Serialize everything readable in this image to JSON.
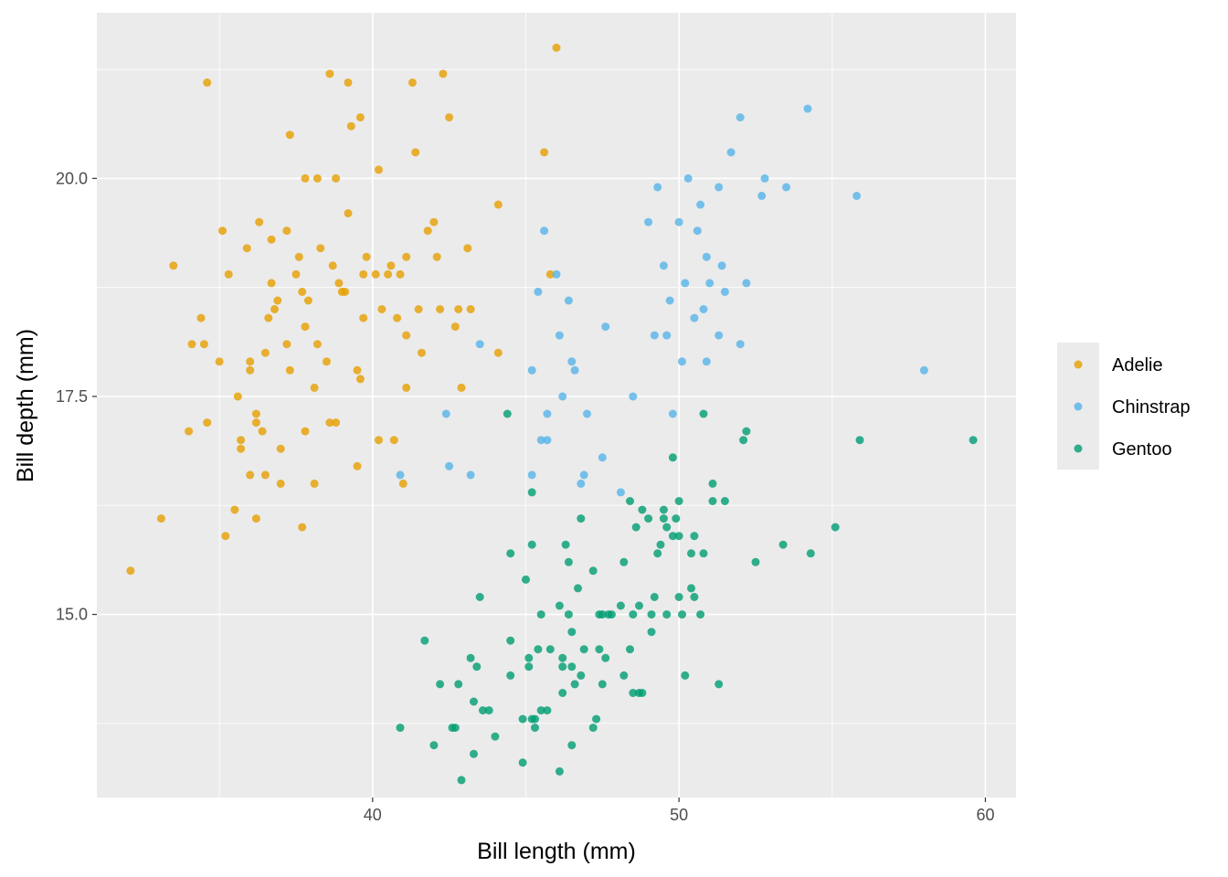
{
  "chart_data": {
    "type": "scatter",
    "title": "",
    "xlabel": "Bill length (mm)",
    "ylabel": "Bill depth (mm)",
    "xlim": [
      31.0,
      61.0
    ],
    "ylim": [
      12.9,
      21.9
    ],
    "x_ticks": [
      40,
      50,
      60
    ],
    "x_tick_labels": [
      "40",
      "50",
      "60"
    ],
    "y_ticks": [
      15.0,
      17.5,
      20.0
    ],
    "y_tick_labels": [
      "15.0",
      "17.5",
      "20.0"
    ],
    "grid": true,
    "panel_background": "#ebebeb",
    "legend_position": "right",
    "point_opacity": 0.8,
    "series": [
      {
        "name": "Adelie",
        "color": "#E69F00",
        "points": [
          [
            32.1,
            15.5
          ],
          [
            33.1,
            16.1
          ],
          [
            33.5,
            19.0
          ],
          [
            34.0,
            17.1
          ],
          [
            34.1,
            18.1
          ],
          [
            34.4,
            18.4
          ],
          [
            34.5,
            18.1
          ],
          [
            34.6,
            21.1
          ],
          [
            34.6,
            17.2
          ],
          [
            35.0,
            17.9
          ],
          [
            35.1,
            19.4
          ],
          [
            35.2,
            15.9
          ],
          [
            35.3,
            18.9
          ],
          [
            35.5,
            16.2
          ],
          [
            35.6,
            17.5
          ],
          [
            35.7,
            17.0
          ],
          [
            35.7,
            16.9
          ],
          [
            35.9,
            19.2
          ],
          [
            36.0,
            17.8
          ],
          [
            36.0,
            17.9
          ],
          [
            36.0,
            16.6
          ],
          [
            36.2,
            17.2
          ],
          [
            36.2,
            17.3
          ],
          [
            36.2,
            16.1
          ],
          [
            36.3,
            19.5
          ],
          [
            36.4,
            17.1
          ],
          [
            36.5,
            18.0
          ],
          [
            36.5,
            16.6
          ],
          [
            36.6,
            18.4
          ],
          [
            36.7,
            18.8
          ],
          [
            36.7,
            19.3
          ],
          [
            36.8,
            18.5
          ],
          [
            36.9,
            18.6
          ],
          [
            37.0,
            16.9
          ],
          [
            37.0,
            16.5
          ],
          [
            37.2,
            18.1
          ],
          [
            37.2,
            19.4
          ],
          [
            37.3,
            17.8
          ],
          [
            37.3,
            20.5
          ],
          [
            37.5,
            18.9
          ],
          [
            37.6,
            19.1
          ],
          [
            37.7,
            18.7
          ],
          [
            37.7,
            16.0
          ],
          [
            37.8,
            17.1
          ],
          [
            37.8,
            18.3
          ],
          [
            37.8,
            20.0
          ],
          [
            37.9,
            18.6
          ],
          [
            38.1,
            17.6
          ],
          [
            38.1,
            16.5
          ],
          [
            38.2,
            20.0
          ],
          [
            38.2,
            18.1
          ],
          [
            38.3,
            19.2
          ],
          [
            38.5,
            17.9
          ],
          [
            38.6,
            21.2
          ],
          [
            38.6,
            17.2
          ],
          [
            38.7,
            19.0
          ],
          [
            38.8,
            17.2
          ],
          [
            38.8,
            20.0
          ],
          [
            38.9,
            18.8
          ],
          [
            39.0,
            18.7
          ],
          [
            39.1,
            18.7
          ],
          [
            39.2,
            19.6
          ],
          [
            39.2,
            21.1
          ],
          [
            39.3,
            20.6
          ],
          [
            39.5,
            17.8
          ],
          [
            39.5,
            16.7
          ],
          [
            39.6,
            17.7
          ],
          [
            39.6,
            20.7
          ],
          [
            39.7,
            18.4
          ],
          [
            39.7,
            18.9
          ],
          [
            39.8,
            19.1
          ],
          [
            40.1,
            18.9
          ],
          [
            40.2,
            17.0
          ],
          [
            40.2,
            20.1
          ],
          [
            40.3,
            18.5
          ],
          [
            40.5,
            18.9
          ],
          [
            40.6,
            19.0
          ],
          [
            40.7,
            17.0
          ],
          [
            40.8,
            18.4
          ],
          [
            40.9,
            18.9
          ],
          [
            41.0,
            16.5
          ],
          [
            41.1,
            19.1
          ],
          [
            41.1,
            18.2
          ],
          [
            41.1,
            17.6
          ],
          [
            41.3,
            21.1
          ],
          [
            41.4,
            20.3
          ],
          [
            41.5,
            18.5
          ],
          [
            41.6,
            18.0
          ],
          [
            41.8,
            19.4
          ],
          [
            42.0,
            19.5
          ],
          [
            42.1,
            19.1
          ],
          [
            42.2,
            18.5
          ],
          [
            42.3,
            21.2
          ],
          [
            42.5,
            20.7
          ],
          [
            42.7,
            18.3
          ],
          [
            42.8,
            18.5
          ],
          [
            42.9,
            17.6
          ],
          [
            43.1,
            19.2
          ],
          [
            43.2,
            18.5
          ],
          [
            44.1,
            19.7
          ],
          [
            44.1,
            18.0
          ],
          [
            45.6,
            20.3
          ],
          [
            45.8,
            18.9
          ],
          [
            46.0,
            21.5
          ]
        ]
      },
      {
        "name": "Chinstrap",
        "color": "#56B4E9",
        "points": [
          [
            40.9,
            16.6
          ],
          [
            42.4,
            17.3
          ],
          [
            42.5,
            16.7
          ],
          [
            43.2,
            16.6
          ],
          [
            43.5,
            18.1
          ],
          [
            45.2,
            16.6
          ],
          [
            45.2,
            17.8
          ],
          [
            45.4,
            18.7
          ],
          [
            45.5,
            17.0
          ],
          [
            45.6,
            19.4
          ],
          [
            45.7,
            17.3
          ],
          [
            45.7,
            17.0
          ],
          [
            46.0,
            18.9
          ],
          [
            46.1,
            18.2
          ],
          [
            46.2,
            17.5
          ],
          [
            46.4,
            18.6
          ],
          [
            46.5,
            17.9
          ],
          [
            46.6,
            17.8
          ],
          [
            46.8,
            16.5
          ],
          [
            46.9,
            16.6
          ],
          [
            47.0,
            17.3
          ],
          [
            47.5,
            16.8
          ],
          [
            47.6,
            18.3
          ],
          [
            48.1,
            16.4
          ],
          [
            48.5,
            17.5
          ],
          [
            49.0,
            19.5
          ],
          [
            49.2,
            18.2
          ],
          [
            49.3,
            19.9
          ],
          [
            49.5,
            19.0
          ],
          [
            49.6,
            18.2
          ],
          [
            49.7,
            18.6
          ],
          [
            49.8,
            17.3
          ],
          [
            50.0,
            19.5
          ],
          [
            50.1,
            17.9
          ],
          [
            50.2,
            18.8
          ],
          [
            50.3,
            20.0
          ],
          [
            50.5,
            18.4
          ],
          [
            50.6,
            19.4
          ],
          [
            50.7,
            19.7
          ],
          [
            50.8,
            18.5
          ],
          [
            50.9,
            17.9
          ],
          [
            50.9,
            19.1
          ],
          [
            51.0,
            18.8
          ],
          [
            51.3,
            18.2
          ],
          [
            51.3,
            19.9
          ],
          [
            51.4,
            19.0
          ],
          [
            51.5,
            18.7
          ],
          [
            51.7,
            20.3
          ],
          [
            52.0,
            18.1
          ],
          [
            52.0,
            20.7
          ],
          [
            52.2,
            18.8
          ],
          [
            52.7,
            19.8
          ],
          [
            52.8,
            20.0
          ],
          [
            53.5,
            19.9
          ],
          [
            54.2,
            20.8
          ],
          [
            55.8,
            19.8
          ],
          [
            58.0,
            17.8
          ]
        ]
      },
      {
        "name": "Gentoo",
        "color": "#009E73",
        "points": [
          [
            40.9,
            13.7
          ],
          [
            41.7,
            14.7
          ],
          [
            42.0,
            13.5
          ],
          [
            42.2,
            14.2
          ],
          [
            42.6,
            13.7
          ],
          [
            42.7,
            13.7
          ],
          [
            42.8,
            14.2
          ],
          [
            42.9,
            13.1
          ],
          [
            43.2,
            14.5
          ],
          [
            43.3,
            13.4
          ],
          [
            43.3,
            14.0
          ],
          [
            43.4,
            14.4
          ],
          [
            43.5,
            15.2
          ],
          [
            43.6,
            13.9
          ],
          [
            43.8,
            13.9
          ],
          [
            44.0,
            13.6
          ],
          [
            44.4,
            17.3
          ],
          [
            44.5,
            15.7
          ],
          [
            44.5,
            14.3
          ],
          [
            44.5,
            14.7
          ],
          [
            44.9,
            13.3
          ],
          [
            44.9,
            13.8
          ],
          [
            45.0,
            15.4
          ],
          [
            45.1,
            14.5
          ],
          [
            45.1,
            14.4
          ],
          [
            45.2,
            15.8
          ],
          [
            45.2,
            16.4
          ],
          [
            45.2,
            13.8
          ],
          [
            45.3,
            13.7
          ],
          [
            45.3,
            13.8
          ],
          [
            45.4,
            14.6
          ],
          [
            45.5,
            13.9
          ],
          [
            45.5,
            15.0
          ],
          [
            45.7,
            13.9
          ],
          [
            45.8,
            14.6
          ],
          [
            46.1,
            13.2
          ],
          [
            46.1,
            15.1
          ],
          [
            46.2,
            14.1
          ],
          [
            46.2,
            14.5
          ],
          [
            46.2,
            14.4
          ],
          [
            46.3,
            15.8
          ],
          [
            46.4,
            15.0
          ],
          [
            46.4,
            15.6
          ],
          [
            46.5,
            13.5
          ],
          [
            46.5,
            14.4
          ],
          [
            46.5,
            14.8
          ],
          [
            46.6,
            14.2
          ],
          [
            46.7,
            15.3
          ],
          [
            46.8,
            14.3
          ],
          [
            46.8,
            16.1
          ],
          [
            46.9,
            14.6
          ],
          [
            47.2,
            13.7
          ],
          [
            47.2,
            15.5
          ],
          [
            47.3,
            13.8
          ],
          [
            47.4,
            14.6
          ],
          [
            47.4,
            15.0
          ],
          [
            47.5,
            14.2
          ],
          [
            47.5,
            15.0
          ],
          [
            47.6,
            14.5
          ],
          [
            47.7,
            15.0
          ],
          [
            47.8,
            15.0
          ],
          [
            48.1,
            15.1
          ],
          [
            48.2,
            15.6
          ],
          [
            48.2,
            14.3
          ],
          [
            48.4,
            14.6
          ],
          [
            48.4,
            16.3
          ],
          [
            48.5,
            14.1
          ],
          [
            48.5,
            15.0
          ],
          [
            48.6,
            16.0
          ],
          [
            48.7,
            14.1
          ],
          [
            48.7,
            15.1
          ],
          [
            48.8,
            16.2
          ],
          [
            48.8,
            14.1
          ],
          [
            49.0,
            16.1
          ],
          [
            49.1,
            14.8
          ],
          [
            49.1,
            15.0
          ],
          [
            49.2,
            15.2
          ],
          [
            49.3,
            15.7
          ],
          [
            49.4,
            15.8
          ],
          [
            49.5,
            16.1
          ],
          [
            49.5,
            16.2
          ],
          [
            49.6,
            15.0
          ],
          [
            49.6,
            16.0
          ],
          [
            49.8,
            15.9
          ],
          [
            49.8,
            16.8
          ],
          [
            49.9,
            16.1
          ],
          [
            50.0,
            15.2
          ],
          [
            50.0,
            15.9
          ],
          [
            50.0,
            16.3
          ],
          [
            50.1,
            15.0
          ],
          [
            50.2,
            14.3
          ],
          [
            50.4,
            15.7
          ],
          [
            50.4,
            15.3
          ],
          [
            50.5,
            15.9
          ],
          [
            50.5,
            15.2
          ],
          [
            50.7,
            15.0
          ],
          [
            50.8,
            15.7
          ],
          [
            50.8,
            17.3
          ],
          [
            51.1,
            16.3
          ],
          [
            51.1,
            16.5
          ],
          [
            51.3,
            14.2
          ],
          [
            51.5,
            16.3
          ],
          [
            52.1,
            17.0
          ],
          [
            52.2,
            17.1
          ],
          [
            52.5,
            15.6
          ],
          [
            53.4,
            15.8
          ],
          [
            54.3,
            15.7
          ],
          [
            55.1,
            16.0
          ],
          [
            55.9,
            17.0
          ],
          [
            59.6,
            17.0
          ]
        ]
      }
    ]
  }
}
